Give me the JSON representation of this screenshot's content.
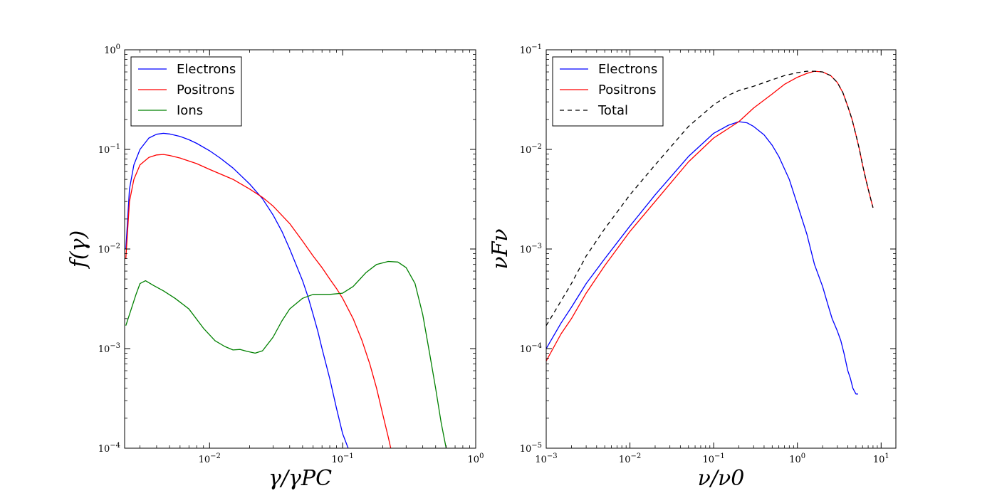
{
  "chart_data": [
    {
      "type": "line",
      "id": "left",
      "xscale": "log",
      "yscale": "log",
      "xlim": [
        0.0023,
        1.0
      ],
      "ylim": [
        0.0001,
        1.0
      ],
      "xlabel": "γ/γPC",
      "ylabel": "f(γ)",
      "xticks": [
        {
          "value": 0.01,
          "base": "10",
          "exp": "−2"
        },
        {
          "value": 0.1,
          "base": "10",
          "exp": "−1"
        },
        {
          "value": 1.0,
          "base": "10",
          "exp": "0"
        }
      ],
      "yticks": [
        {
          "value": 0.0001,
          "base": "10",
          "exp": "−4"
        },
        {
          "value": 0.001,
          "base": "10",
          "exp": "−3"
        },
        {
          "value": 0.01,
          "base": "10",
          "exp": "−2"
        },
        {
          "value": 0.1,
          "base": "10",
          "exp": "−1"
        },
        {
          "value": 1.0,
          "base": "10",
          "exp": "0"
        }
      ],
      "legend_position": "top-left",
      "series": [
        {
          "name": "Electrons",
          "color": "#0000ff",
          "dash": "",
          "x": [
            0.00235,
            0.0025,
            0.0027,
            0.003,
            0.0035,
            0.004,
            0.0045,
            0.005,
            0.006,
            0.007,
            0.008,
            0.01,
            0.012,
            0.015,
            0.02,
            0.025,
            0.03,
            0.035,
            0.04,
            0.045,
            0.05,
            0.055,
            0.06,
            0.065,
            0.07,
            0.08,
            0.09,
            0.1,
            0.11
          ],
          "y": [
            0.01,
            0.04,
            0.07,
            0.1,
            0.13,
            0.142,
            0.145,
            0.143,
            0.135,
            0.125,
            0.115,
            0.097,
            0.082,
            0.065,
            0.045,
            0.032,
            0.022,
            0.015,
            0.01,
            0.0068,
            0.0048,
            0.0033,
            0.0022,
            0.0015,
            0.001,
            0.0005,
            0.00025,
            0.00014,
            0.0001
          ]
        },
        {
          "name": "Positrons",
          "color": "#ff0000",
          "dash": "",
          "x": [
            0.00235,
            0.0025,
            0.0027,
            0.003,
            0.0035,
            0.004,
            0.0045,
            0.005,
            0.006,
            0.008,
            0.01,
            0.015,
            0.02,
            0.025,
            0.03,
            0.04,
            0.05,
            0.06,
            0.07,
            0.08,
            0.09,
            0.1,
            0.12,
            0.14,
            0.16,
            0.18,
            0.2,
            0.22,
            0.23
          ],
          "y": [
            0.008,
            0.03,
            0.05,
            0.07,
            0.083,
            0.088,
            0.089,
            0.087,
            0.082,
            0.072,
            0.063,
            0.05,
            0.04,
            0.033,
            0.027,
            0.018,
            0.012,
            0.0085,
            0.0065,
            0.005,
            0.004,
            0.0032,
            0.002,
            0.0012,
            0.0007,
            0.0004,
            0.00022,
            0.00013,
            0.0001
          ]
        },
        {
          "name": "Ions",
          "color": "#008000",
          "dash": "",
          "x": [
            0.00235,
            0.0025,
            0.0028,
            0.003,
            0.0033,
            0.0038,
            0.0045,
            0.0055,
            0.007,
            0.009,
            0.011,
            0.013,
            0.015,
            0.017,
            0.019,
            0.022,
            0.025,
            0.03,
            0.035,
            0.04,
            0.05,
            0.06,
            0.07,
            0.08,
            0.1,
            0.12,
            0.15,
            0.18,
            0.22,
            0.26,
            0.3,
            0.35,
            0.4,
            0.45,
            0.5,
            0.55,
            0.6
          ],
          "y": [
            0.0017,
            0.0022,
            0.0035,
            0.0045,
            0.0048,
            0.0043,
            0.0038,
            0.0032,
            0.0025,
            0.0016,
            0.0012,
            0.00105,
            0.00097,
            0.00098,
            0.00094,
            0.0009,
            0.00095,
            0.0013,
            0.0019,
            0.0025,
            0.0032,
            0.0035,
            0.0035,
            0.0035,
            0.0036,
            0.0042,
            0.0058,
            0.007,
            0.0075,
            0.0074,
            0.0065,
            0.0045,
            0.0022,
            0.0009,
            0.0004,
            0.00018,
            0.0001
          ]
        }
      ]
    },
    {
      "type": "line",
      "id": "right",
      "xscale": "log",
      "yscale": "log",
      "xlim": [
        0.001,
        15.0
      ],
      "ylim": [
        1e-05,
        0.1
      ],
      "xlabel": "ν/ν0",
      "ylabel": "νFν",
      "xticks": [
        {
          "value": 0.001,
          "base": "10",
          "exp": "−3"
        },
        {
          "value": 0.01,
          "base": "10",
          "exp": "−2"
        },
        {
          "value": 0.1,
          "base": "10",
          "exp": "−1"
        },
        {
          "value": 1.0,
          "base": "10",
          "exp": "0"
        },
        {
          "value": 10.0,
          "base": "10",
          "exp": "1"
        }
      ],
      "yticks": [
        {
          "value": 1e-05,
          "base": "10",
          "exp": "−5"
        },
        {
          "value": 0.0001,
          "base": "10",
          "exp": "−4"
        },
        {
          "value": 0.001,
          "base": "10",
          "exp": "−3"
        },
        {
          "value": 0.01,
          "base": "10",
          "exp": "−2"
        },
        {
          "value": 0.1,
          "base": "10",
          "exp": "−1"
        }
      ],
      "legend_position": "top-left",
      "series": [
        {
          "name": "Electrons",
          "color": "#0000ff",
          "dash": "",
          "x": [
            0.001,
            0.0015,
            0.002,
            0.003,
            0.005,
            0.01,
            0.02,
            0.05,
            0.1,
            0.15,
            0.2,
            0.25,
            0.3,
            0.4,
            0.5,
            0.6,
            0.8,
            1.0,
            1.3,
            1.6,
            2.0,
            2.3,
            2.6,
            3.0,
            3.3,
            3.6,
            4.0,
            4.3,
            4.6,
            5.0,
            5.3
          ],
          "y": [
            0.0001,
            0.00018,
            0.00026,
            0.00045,
            0.0008,
            0.0017,
            0.0035,
            0.0085,
            0.0145,
            0.0175,
            0.019,
            0.0185,
            0.017,
            0.014,
            0.011,
            0.0085,
            0.005,
            0.0028,
            0.0014,
            0.0007,
            0.00042,
            0.00028,
            0.0002,
            0.00015,
            0.00012,
            9e-05,
            6e-05,
            5e-05,
            4e-05,
            3.5e-05,
            3.5e-05
          ]
        },
        {
          "name": "Positrons",
          "color": "#ff0000",
          "dash": "",
          "x": [
            0.001,
            0.0015,
            0.002,
            0.003,
            0.005,
            0.01,
            0.02,
            0.05,
            0.1,
            0.2,
            0.3,
            0.5,
            0.7,
            1.0,
            1.3,
            1.6,
            2.0,
            2.5,
            3.0,
            3.5,
            4.0,
            4.5,
            5.0,
            5.5,
            6.0,
            6.5,
            7.0,
            7.5,
            8.0
          ],
          "y": [
            7.5e-05,
            0.00014,
            0.0002,
            0.00036,
            0.00068,
            0.0015,
            0.003,
            0.0075,
            0.013,
            0.019,
            0.026,
            0.036,
            0.045,
            0.053,
            0.058,
            0.061,
            0.06,
            0.055,
            0.047,
            0.037,
            0.027,
            0.02,
            0.014,
            0.01,
            0.007,
            0.0052,
            0.004,
            0.0032,
            0.0026
          ]
        },
        {
          "name": "Total",
          "color": "#000000",
          "dash": "6,5",
          "x": [
            0.001,
            0.0015,
            0.002,
            0.003,
            0.005,
            0.01,
            0.02,
            0.05,
            0.1,
            0.15,
            0.2,
            0.3,
            0.5,
            0.7,
            1.0,
            1.3,
            1.6,
            2.0,
            2.5,
            3.0,
            3.5,
            4.0,
            4.5,
            5.0,
            5.5,
            6.0,
            6.5,
            7.0,
            7.5,
            8.0
          ],
          "y": [
            0.00017,
            0.0003,
            0.00045,
            0.00085,
            0.0016,
            0.0035,
            0.007,
            0.017,
            0.028,
            0.035,
            0.039,
            0.043,
            0.05,
            0.055,
            0.059,
            0.061,
            0.061,
            0.06,
            0.055,
            0.047,
            0.037,
            0.027,
            0.02,
            0.014,
            0.01,
            0.007,
            0.0052,
            0.004,
            0.0032,
            0.0026
          ]
        }
      ]
    }
  ]
}
